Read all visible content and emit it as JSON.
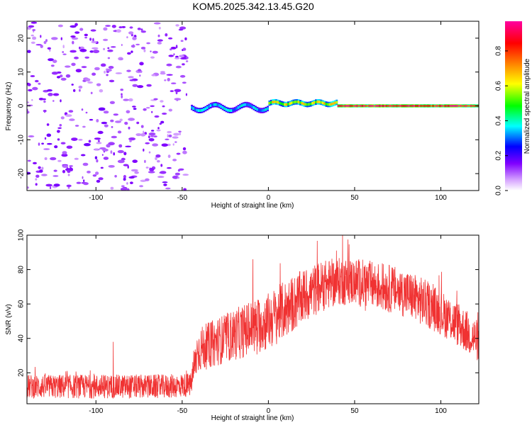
{
  "title": "KOM5.2025.342.13.45.G20",
  "chart_data": [
    {
      "type": "heatmap",
      "xlabel": "Height of straight line (km)",
      "ylabel": "Frequency (Hz)",
      "xlim": [
        -140,
        122
      ],
      "ylim": [
        -25,
        25
      ],
      "xticks": [
        -100,
        -50,
        0,
        50,
        100
      ],
      "yticks": [
        -20,
        -10,
        0,
        10,
        20
      ],
      "colorbar": {
        "label": "Normalized spectral amplitude",
        "range": [
          0,
          0.97
        ],
        "ticks": [
          0.0,
          0.2,
          0.4,
          0.6,
          0.8
        ],
        "colors": [
          "#ffffff",
          "#d8a8ff",
          "#8000ff",
          "#0000ff",
          "#00ffff",
          "#00ff00",
          "#ffff00",
          "#ff8000",
          "#ff0000",
          "#ff00a0"
        ]
      },
      "regions": [
        {
          "x_range": [
            -140,
            -45
          ],
          "description": "scattered noise",
          "freq_range": [
            -25,
            25
          ],
          "amplitude": 0.12
        },
        {
          "x_range": [
            -45,
            0
          ],
          "description": "wavering signal",
          "center_freq_hz": -0.5,
          "amplitude": 0.35
        },
        {
          "x_range": [
            0,
            40
          ],
          "description": "signal",
          "center_freq_hz": 0.8,
          "amplitude": 0.6
        },
        {
          "x_range": [
            40,
            122
          ],
          "description": "strong steady signal",
          "center_freq_hz": 0.0,
          "amplitude": 0.9
        }
      ]
    },
    {
      "type": "line",
      "xlabel": "Height of straight line (km)",
      "ylabel": "SNR (v/v)",
      "xlim": [
        -140,
        122
      ],
      "ylim": [
        2,
        100
      ],
      "xticks": [
        -100,
        -50,
        0,
        50,
        100
      ],
      "yticks": [
        20,
        40,
        60,
        80,
        100
      ],
      "series": [
        {
          "name": "SNR",
          "color": "#f03232",
          "trend_x": [
            -140,
            -120,
            -100,
            -80,
            -60,
            -45,
            -41,
            -30,
            -20,
            -10,
            0,
            10,
            20,
            30,
            40,
            50,
            60,
            70,
            80,
            90,
            100,
            110,
            122
          ],
          "trend_mean": [
            12,
            12,
            12,
            12,
            12,
            13,
            33,
            38,
            42,
            46,
            50,
            57,
            64,
            70,
            73,
            73,
            71,
            69,
            66,
            61,
            55,
            48,
            38
          ],
          "noise_amplitude": [
            7,
            7,
            7,
            7,
            7,
            7,
            13,
            14,
            15,
            16,
            17,
            17,
            16,
            15,
            14,
            14,
            14,
            14,
            14,
            14,
            13,
            13,
            12
          ],
          "peaks": [
            {
              "x": 43,
              "y": 100
            },
            {
              "x": -9,
              "y": 86
            },
            {
              "x": -90,
              "y": 38
            }
          ]
        }
      ]
    }
  ]
}
